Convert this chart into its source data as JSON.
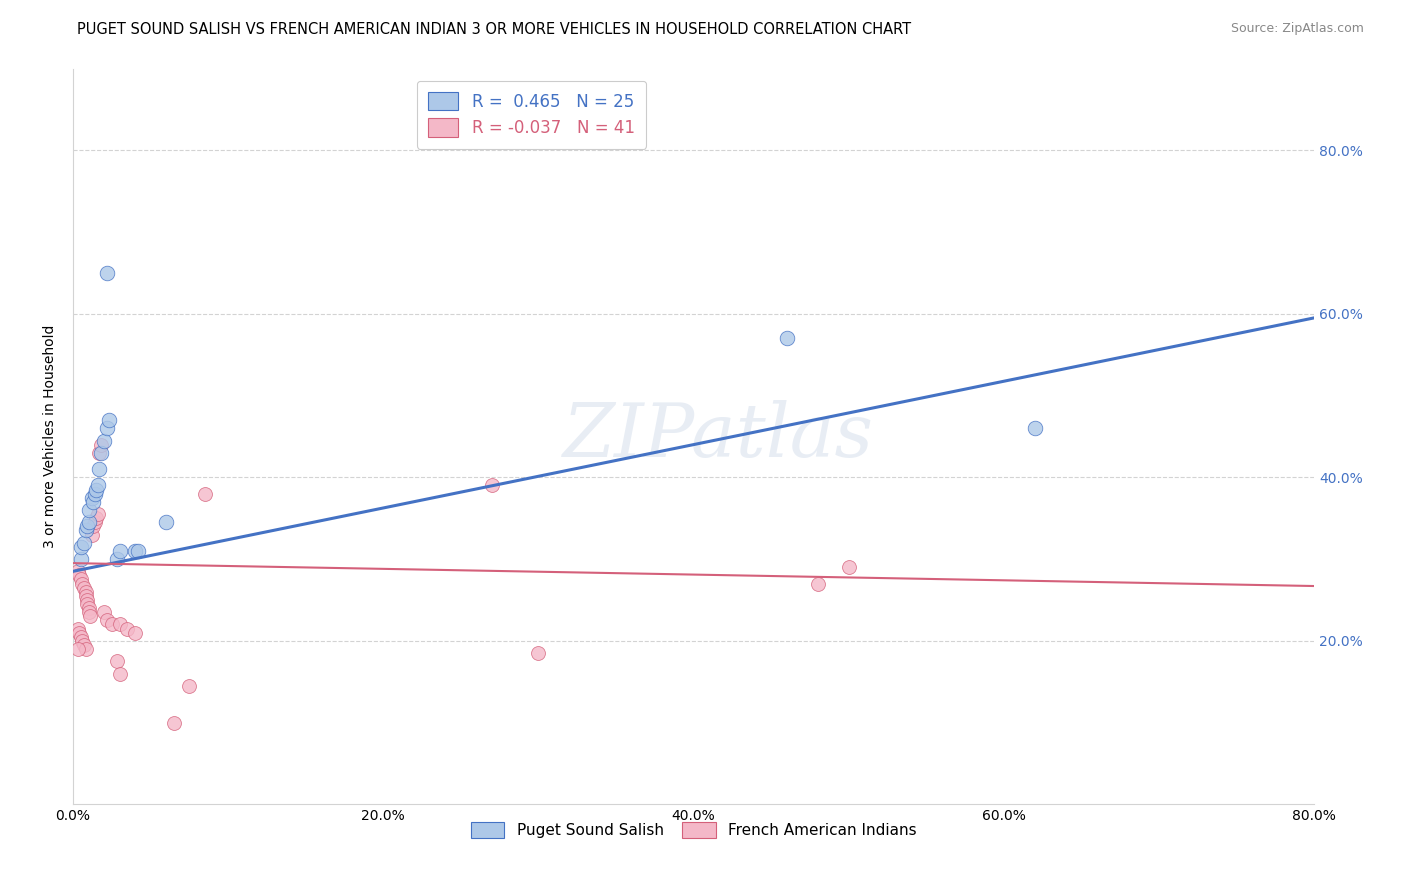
{
  "title": "PUGET SOUND SALISH VS FRENCH AMERICAN INDIAN 3 OR MORE VEHICLES IN HOUSEHOLD CORRELATION CHART",
  "source": "Source: ZipAtlas.com",
  "ylabel": "3 or more Vehicles in Household",
  "xlim": [
    0.0,
    0.8
  ],
  "ylim": [
    0.0,
    0.9
  ],
  "xticks": [
    0.0,
    0.2,
    0.4,
    0.6,
    0.8
  ],
  "yticks": [
    0.2,
    0.4,
    0.6,
    0.8
  ],
  "xtick_labels": [
    "0.0%",
    "20.0%",
    "40.0%",
    "60.0%",
    "80.0%"
  ],
  "ytick_labels": [
    "20.0%",
    "40.0%",
    "60.0%",
    "80.0%"
  ],
  "legend_entries": [
    {
      "label": "R =  0.465   N = 25",
      "color": "#adc8e8",
      "line_color": "#4472c4"
    },
    {
      "label": "R = -0.037   N = 41",
      "color": "#f4b8c8",
      "line_color": "#d4607a"
    }
  ],
  "legend_labels": [
    "Puget Sound Salish",
    "French American Indians"
  ],
  "watermark": "ZIPatlas",
  "blue_scatter": [
    [
      0.005,
      0.3
    ],
    [
      0.005,
      0.315
    ],
    [
      0.007,
      0.32
    ],
    [
      0.008,
      0.335
    ],
    [
      0.009,
      0.34
    ],
    [
      0.01,
      0.345
    ],
    [
      0.01,
      0.36
    ],
    [
      0.012,
      0.375
    ],
    [
      0.013,
      0.37
    ],
    [
      0.014,
      0.38
    ],
    [
      0.015,
      0.385
    ],
    [
      0.016,
      0.39
    ],
    [
      0.017,
      0.41
    ],
    [
      0.018,
      0.43
    ],
    [
      0.02,
      0.445
    ],
    [
      0.022,
      0.46
    ],
    [
      0.023,
      0.47
    ],
    [
      0.028,
      0.3
    ],
    [
      0.03,
      0.31
    ],
    [
      0.04,
      0.31
    ],
    [
      0.042,
      0.31
    ],
    [
      0.022,
      0.65
    ],
    [
      0.06,
      0.345
    ],
    [
      0.46,
      0.57
    ],
    [
      0.62,
      0.46
    ]
  ],
  "pink_scatter": [
    [
      0.003,
      0.285
    ],
    [
      0.004,
      0.28
    ],
    [
      0.005,
      0.275
    ],
    [
      0.006,
      0.27
    ],
    [
      0.007,
      0.265
    ],
    [
      0.008,
      0.26
    ],
    [
      0.008,
      0.255
    ],
    [
      0.009,
      0.25
    ],
    [
      0.009,
      0.245
    ],
    [
      0.01,
      0.24
    ],
    [
      0.01,
      0.235
    ],
    [
      0.011,
      0.23
    ],
    [
      0.012,
      0.33
    ],
    [
      0.013,
      0.34
    ],
    [
      0.014,
      0.345
    ],
    [
      0.015,
      0.35
    ],
    [
      0.016,
      0.355
    ],
    [
      0.017,
      0.43
    ],
    [
      0.018,
      0.44
    ],
    [
      0.003,
      0.215
    ],
    [
      0.004,
      0.21
    ],
    [
      0.005,
      0.205
    ],
    [
      0.006,
      0.2
    ],
    [
      0.007,
      0.195
    ],
    [
      0.008,
      0.19
    ],
    [
      0.02,
      0.235
    ],
    [
      0.022,
      0.225
    ],
    [
      0.025,
      0.22
    ],
    [
      0.03,
      0.22
    ],
    [
      0.035,
      0.215
    ],
    [
      0.04,
      0.21
    ],
    [
      0.028,
      0.175
    ],
    [
      0.03,
      0.16
    ],
    [
      0.065,
      0.1
    ],
    [
      0.075,
      0.145
    ],
    [
      0.085,
      0.38
    ],
    [
      0.27,
      0.39
    ],
    [
      0.3,
      0.185
    ],
    [
      0.48,
      0.27
    ],
    [
      0.5,
      0.29
    ],
    [
      0.003,
      0.19
    ]
  ],
  "blue_line": [
    [
      0.0,
      0.285
    ],
    [
      0.8,
      0.595
    ]
  ],
  "pink_line": [
    [
      0.0,
      0.295
    ],
    [
      0.8,
      0.267
    ]
  ],
  "blue_scatter_size": 110,
  "pink_scatter_size": 100,
  "blue_color": "#adc8e8",
  "pink_color": "#f4b8c8",
  "blue_edge_color": "#4472c4",
  "pink_edge_color": "#d4607a",
  "blue_line_color": "#4472c4",
  "pink_line_color": "#d4607a",
  "title_fontsize": 10.5,
  "axis_label_fontsize": 10,
  "tick_fontsize": 10,
  "right_tick_color": "#4472c4",
  "background_color": "#ffffff"
}
